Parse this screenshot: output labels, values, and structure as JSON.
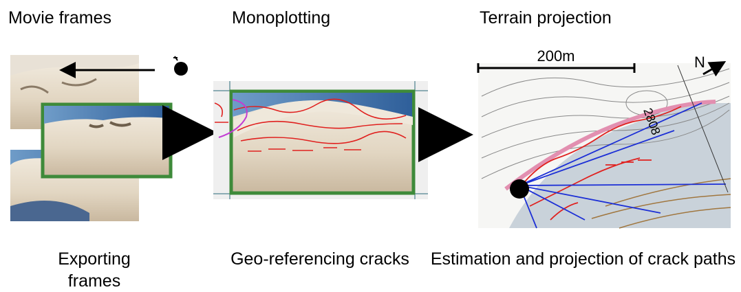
{
  "steps": [
    {
      "title": "Movie frames",
      "caption": "Exporting frames"
    },
    {
      "title": "Monoplotting",
      "caption": "Geo-referencing cracks"
    },
    {
      "title": "Terrain projection",
      "caption": "Estimation and projection of crack paths"
    }
  ],
  "map": {
    "scale_label": "200m",
    "north_label": "N",
    "elevation_label": "2808"
  }
}
